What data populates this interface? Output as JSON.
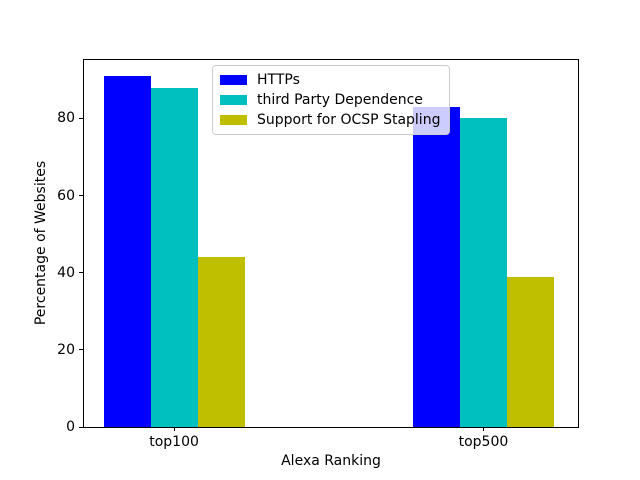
{
  "chart_data": {
    "type": "bar",
    "title": "",
    "xlabel": "Alexa Ranking",
    "ylabel": "Percentage of Websites",
    "categories": [
      "top100",
      "top500"
    ],
    "series": [
      {
        "name": "HTTPs",
        "color": "#0000ff",
        "values": [
          91,
          83
        ]
      },
      {
        "name": "third Party Dependence",
        "color": "#00bfbf",
        "values": [
          88,
          80
        ]
      },
      {
        "name": "Support for OCSP Stapling",
        "color": "#bfbf00",
        "values": [
          44,
          39
        ]
      }
    ],
    "yticks": [
      0,
      20,
      40,
      60,
      80
    ],
    "ylim": [
      0,
      95.4
    ],
    "grid": false,
    "legend_position": "upper center",
    "background_color": "#ffffff",
    "axis_color": "#000000",
    "legend_border_color": "#cccccc"
  }
}
